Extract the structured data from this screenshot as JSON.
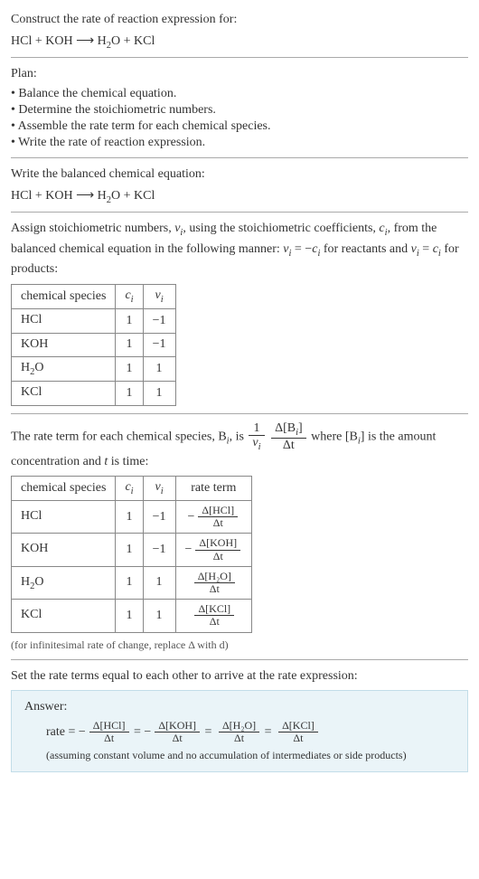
{
  "prompt": {
    "line1": "Construct the rate of reaction expression for:",
    "equation_left": "HCl + KOH",
    "equation_arrow": "⟶",
    "equation_right_h2o": "H",
    "equation_right_h2o_sub": "2",
    "equation_right_h2o_tail": "O + KCl"
  },
  "plan": {
    "heading": "Plan:",
    "items": [
      "• Balance the chemical equation.",
      "• Determine the stoichiometric numbers.",
      "• Assemble the rate term for each chemical species.",
      "• Write the rate of reaction expression."
    ]
  },
  "balanced": {
    "heading": "Write the balanced chemical equation:",
    "left": "HCl + KOH",
    "arrow": "⟶",
    "right_pre": "H",
    "right_sub": "2",
    "right_post": "O + KCl"
  },
  "stoich": {
    "text_a": "Assign stoichiometric numbers, ",
    "nu": "ν",
    "nu_sub": "i",
    "text_b": ", using the stoichiometric coefficients, ",
    "c": "c",
    "c_sub": "i",
    "text_c": ", from the balanced chemical equation in the following manner: ",
    "rel_reactants_lhs": "ν",
    "rel_reactants_lhs_sub": "i",
    "rel_eq": " = −",
    "rel_reactants_rhs": "c",
    "rel_reactants_rhs_sub": "i",
    "text_d": " for reactants and ",
    "rel_products_lhs": "ν",
    "rel_products_lhs_sub": "i",
    "rel_products_eq": " = ",
    "rel_products_rhs": "c",
    "rel_products_rhs_sub": "i",
    "text_e": " for products:",
    "table": {
      "h_species": "chemical species",
      "h_ci": "c",
      "h_ci_sub": "i",
      "h_nu": "ν",
      "h_nu_sub": "i",
      "rows": [
        {
          "species_pre": "HCl",
          "species_sub": "",
          "species_post": "",
          "ci": "1",
          "nu": "−1"
        },
        {
          "species_pre": "KOH",
          "species_sub": "",
          "species_post": "",
          "ci": "1",
          "nu": "−1"
        },
        {
          "species_pre": "H",
          "species_sub": "2",
          "species_post": "O",
          "ci": "1",
          "nu": "1"
        },
        {
          "species_pre": "KCl",
          "species_sub": "",
          "species_post": "",
          "ci": "1",
          "nu": "1"
        }
      ]
    }
  },
  "rateterm": {
    "text_a": "The rate term for each chemical species, B",
    "text_a_sub": "i",
    "text_b": ", is ",
    "frac1_num": "1",
    "frac1_den_nu": "ν",
    "frac1_den_sub": "i",
    "frac2_num": "Δ[B",
    "frac2_num_sub": "i",
    "frac2_num_tail": "]",
    "frac2_den": "Δt",
    "text_c": " where [B",
    "text_c_sub": "i",
    "text_d": "] is the amount concentration and ",
    "t": "t",
    "text_e": " is time:",
    "table": {
      "h_species": "chemical species",
      "h_ci": "c",
      "h_ci_sub": "i",
      "h_nu": "ν",
      "h_nu_sub": "i",
      "h_rate": "rate term",
      "rows": [
        {
          "species_pre": "HCl",
          "species_sub": "",
          "species_post": "",
          "ci": "1",
          "nu": "−1",
          "sign": "−",
          "num": "Δ[HCl]",
          "den": "Δt"
        },
        {
          "species_pre": "KOH",
          "species_sub": "",
          "species_post": "",
          "ci": "1",
          "nu": "−1",
          "sign": "−",
          "num": "Δ[KOH]",
          "den": "Δt"
        },
        {
          "species_pre": "H",
          "species_sub": "2",
          "species_post": "O",
          "ci": "1",
          "nu": "1",
          "sign": "",
          "num": "Δ[H₂O]",
          "den": "Δt"
        },
        {
          "species_pre": "KCl",
          "species_sub": "",
          "species_post": "",
          "ci": "1",
          "nu": "1",
          "sign": "",
          "num": "Δ[KCl]",
          "den": "Δt"
        }
      ]
    },
    "note": "(for infinitesimal rate of change, replace Δ with d)"
  },
  "final": {
    "heading": "Set the rate terms equal to each other to arrive at the rate expression:",
    "answer_label": "Answer:",
    "rate_label": "rate = ",
    "terms": [
      {
        "sign": "−",
        "num": "Δ[HCl]",
        "den": "Δt"
      },
      {
        "sign": "−",
        "num": "Δ[KOH]",
        "den": "Δt"
      },
      {
        "sign": "",
        "num": "Δ[H₂O]",
        "den": "Δt"
      },
      {
        "sign": "",
        "num": "Δ[KCl]",
        "den": "Δt"
      }
    ],
    "eq": " = ",
    "assume": "(assuming constant volume and no accumulation of intermediates or side products)"
  }
}
